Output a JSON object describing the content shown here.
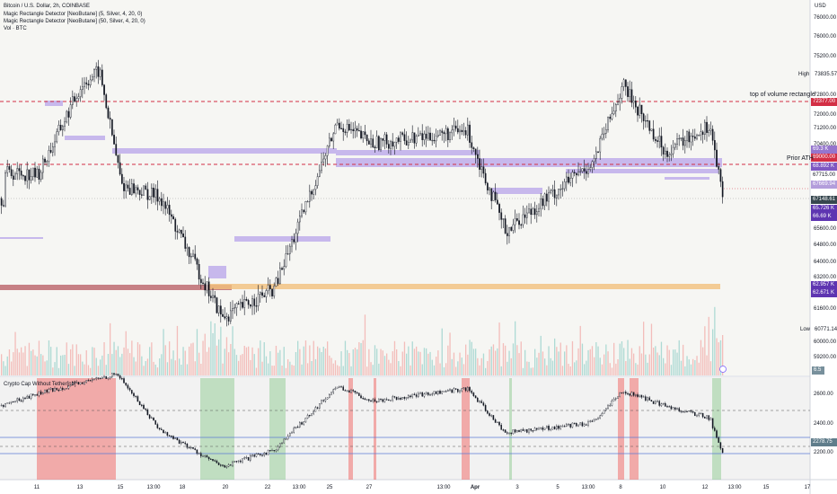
{
  "header": {
    "symbol_line": "Bitcoin / U.S. Dollar, 2h, COINBASE",
    "indicators": [
      "Magic Rectangle Detector [NeoButane] (5, Silver, 4, 20, 0)",
      "Magic Rectangle Detector [NeoButane] (50, Silver, 4, 20, 0)",
      "Vol · BTC"
    ],
    "currency": "USD"
  },
  "lower_pane": {
    "title": "Crypto Cap Without Tether[nb]"
  },
  "annotations": {
    "top_volume": "top of volume rectangle",
    "prior_ath": "Prior ATH",
    "high": "High",
    "low": "Low"
  },
  "price_axis": {
    "ticks": [
      "76000.00",
      "75200.00",
      "74400.00",
      "72800.00",
      "72000.00",
      "71200.00",
      "70400.00",
      "69600.00",
      "68000.00",
      "67200.00",
      "66400.00",
      "65600.00",
      "64800.00",
      "64000.00",
      "63200.00",
      "61600.00",
      "60800.00",
      "60000.00",
      "59200.00"
    ],
    "labels": {
      "high_value": "73835.57",
      "ath": "72377.00",
      "a1": "69.3 K",
      "a2": "69000.00",
      "a3": "68.892 K",
      "a4": "67715.00",
      "a5": "67669.94",
      "last": "67148.61",
      "a6": "65.726 K",
      "a7": "66.69 K",
      "a8": "62.957 K",
      "a9": "62.671 K",
      "low_value": "60771.14",
      "vol": "6.5",
      "lp_2600": "2600.00",
      "lp_2400": "2400.00",
      "lp_2278": "2278.75",
      "lp_2200": "2200.00"
    }
  },
  "time_axis": {
    "ticks": [
      "11",
      "13",
      "15",
      "13:00",
      "18",
      "20",
      "22",
      "13:00",
      "25",
      "27",
      "13:00",
      "Apr",
      "3",
      "5",
      "13:00",
      "8",
      "10",
      "12",
      "13:00",
      "15",
      "17"
    ]
  },
  "colors": {
    "up": "#26a69a",
    "down": "#ef5350",
    "candle": "#131722",
    "purple_zone": "#c7b8ec",
    "orange_zone": "#f3c07c",
    "maroon_zone": "#a6323a",
    "red_bg": "#ef5350",
    "green_bg": "#4caf50"
  },
  "chart_data": [
    {
      "type": "line",
      "title": "Bitcoin / U.S. Dollar, 2h, COINBASE",
      "series": [
        {
          "name": "",
          "x": [
            "11",
            "13",
            "15",
            "18",
            "20",
            "22",
            "25",
            "27",
            "Apr",
            "3",
            "5",
            "8",
            "10",
            "12"
          ],
          "y": [
            68300,
            72600,
            73300,
            67800,
            61400,
            64800,
            70800,
            69800,
            70400,
            65600,
            68900,
            72600,
            69400,
            67148
          ]
        }
      ],
      "ylim": [
        59000,
        77000
      ],
      "lines": {
        "ath": 72377,
        "prior_ath": 69000
      }
    },
    {
      "type": "line",
      "title": "Crypto Cap Without Tether[nb]",
      "series": [
        {
          "name": "",
          "x": [
            "11",
            "13",
            "15",
            "18",
            "20",
            "22",
            "25",
            "27",
            "Apr",
            "3",
            "5",
            "8",
            "10",
            "12"
          ],
          "y": [
            2470,
            2580,
            2560,
            2330,
            2180,
            2250,
            2510,
            2450,
            2500,
            2320,
            2360,
            2490,
            2430,
            2230
          ]
        }
      ],
      "ylim": [
        2130,
        2650
      ]
    }
  ]
}
